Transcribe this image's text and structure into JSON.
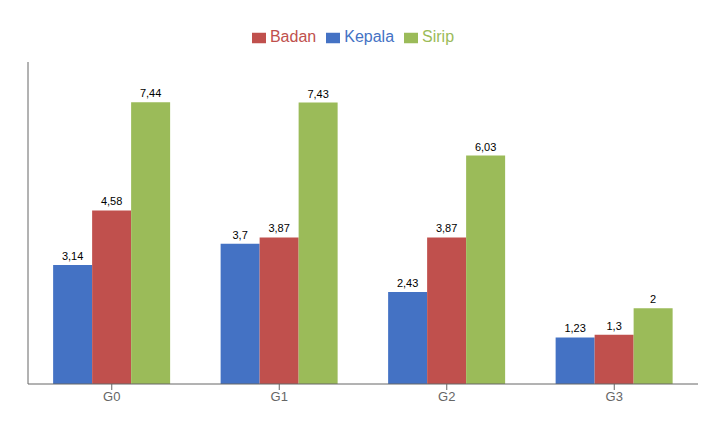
{
  "chart_data": {
    "type": "bar",
    "categories": [
      "G0",
      "G1",
      "G2",
      "G3"
    ],
    "series": [
      {
        "name": "Kepala",
        "color": "#4472C4",
        "values": [
          3.14,
          3.7,
          2.43,
          1.23
        ],
        "value_labels": [
          "3,14",
          "3,7",
          "2,43",
          "1,23"
        ]
      },
      {
        "name": "Badan",
        "color": "#C0504D",
        "values": [
          4.58,
          3.87,
          3.87,
          1.3
        ],
        "value_labels": [
          "4,58",
          "3,87",
          "3,87",
          "1,3"
        ]
      },
      {
        "name": "Sirip",
        "color": "#9BBB59",
        "values": [
          7.44,
          7.43,
          6.03,
          2
        ],
        "value_labels": [
          "7,44",
          "7,43",
          "6,03",
          "2"
        ]
      }
    ],
    "ylim": [
      0,
      8.5
    ],
    "grid": false,
    "legend": "top",
    "data_labels": true,
    "tick_labels": "x"
  }
}
